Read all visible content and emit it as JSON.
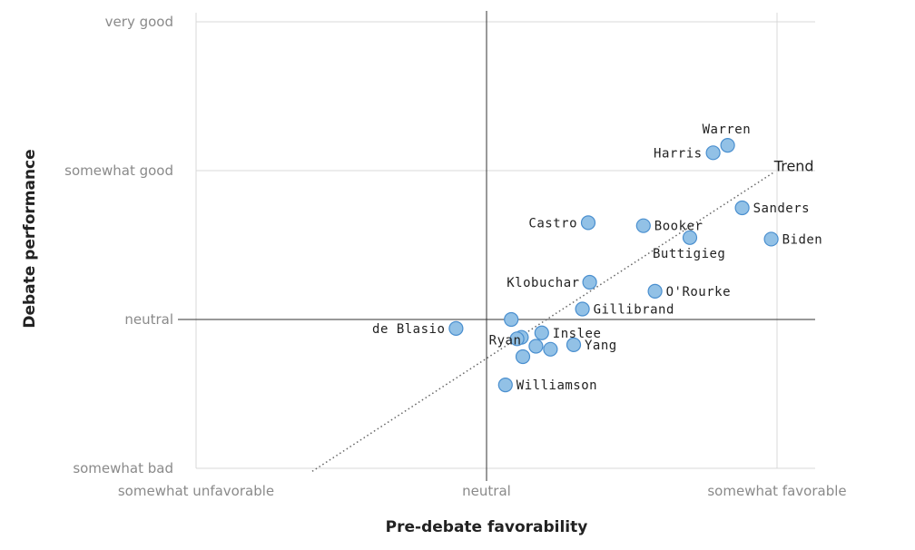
{
  "chart_data": {
    "type": "scatter",
    "xlabel": "Pre-debate favorability",
    "ylabel": "Debate performance",
    "xlim": [
      -1.0,
      1.13
    ],
    "ylim": [
      -1.03,
      2.0
    ],
    "x_ticks": [
      {
        "value": -1,
        "label": "somewhat unfavorable"
      },
      {
        "value": 0,
        "label": "neutral"
      },
      {
        "value": 1,
        "label": "somewhat favorable"
      }
    ],
    "y_ticks": [
      {
        "value": -1,
        "label": "somewhat bad"
      },
      {
        "value": 0,
        "label": "neutral"
      },
      {
        "value": 1,
        "label": "somewhat good"
      },
      {
        "value": 2,
        "label": "very good"
      }
    ],
    "grid": true,
    "reference_lines": {
      "x": 0,
      "y": 0
    },
    "trend": {
      "label": "Trend",
      "x": [
        -0.6,
        0.99
      ],
      "y": [
        -1.02,
        0.99
      ]
    },
    "points": [
      {
        "label": "Warren",
        "x": 0.83,
        "y": 1.17
      },
      {
        "label": "Harris",
        "x": 0.78,
        "y": 1.12
      },
      {
        "label": "Sanders",
        "x": 0.88,
        "y": 0.75
      },
      {
        "label": "Biden",
        "x": 0.98,
        "y": 0.54
      },
      {
        "label": "Castro",
        "x": 0.35,
        "y": 0.65
      },
      {
        "label": "Booker",
        "x": 0.54,
        "y": 0.63
      },
      {
        "label": "Buttigieg",
        "x": 0.7,
        "y": 0.55
      },
      {
        "label": "Klobuchar",
        "x": 0.355,
        "y": 0.25
      },
      {
        "label": "O'Rourke",
        "x": 0.58,
        "y": 0.19
      },
      {
        "label": "Gillibrand",
        "x": 0.33,
        "y": 0.07
      },
      {
        "label": "de Blasio",
        "x": -0.105,
        "y": -0.06
      },
      {
        "label": "Ryan",
        "x": 0.12,
        "y": -0.12
      },
      {
        "label": "Inslee",
        "x": 0.19,
        "y": -0.09
      },
      {
        "label": "Yang",
        "x": 0.3,
        "y": -0.17
      },
      {
        "label": "Williamson",
        "x": 0.065,
        "y": -0.44
      },
      {
        "label": "",
        "x": 0.085,
        "y": 0.0
      },
      {
        "label": "",
        "x": 0.105,
        "y": -0.13
      },
      {
        "label": "",
        "x": 0.17,
        "y": -0.18
      },
      {
        "label": "",
        "x": 0.22,
        "y": -0.2
      },
      {
        "label": "",
        "x": 0.125,
        "y": -0.25
      }
    ],
    "marker_color": "#92c1e6",
    "marker_stroke": "#4a8fcf"
  }
}
